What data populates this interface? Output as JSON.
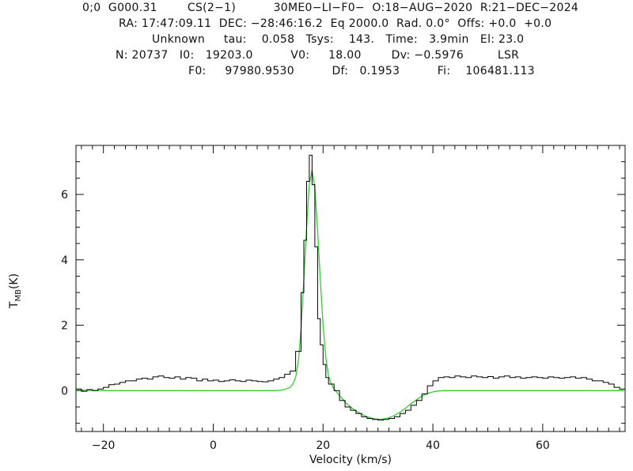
{
  "header": {
    "line1": "0;0  G000.31        CS(2−1)          30ME0−LI−F0−  O:18−AUG−2020  R:21−DEC−2024",
    "line2": "RA: 17:47:09.11  DEC: −28:46:16.2  Eq 2000.0  Rad. 0.0°  Offs: +0.0  +0.0",
    "line3": "Unknown     tau:    0.058   Tsys:    143.   Time:   3.9min   El: 23.0",
    "line4": "N: 20737   I0:   19203.0          V0:     18.00        Dv: −0.5976         LSR",
    "line5": "F0:     97980.9530          Df:   0.1953          Fi:    106481.113"
  },
  "chart_data": {
    "type": "line",
    "xlabel": "Velocity (km/s)",
    "ylabel_main": "T",
    "ylabel_sub": "MB",
    "ylabel_suffix": "(K)",
    "xlim": [
      -25,
      75
    ],
    "ylim": [
      -1.25,
      7.5
    ],
    "xticks": [
      -20,
      0,
      20,
      40,
      60
    ],
    "yticks": [
      0,
      2,
      4,
      6
    ],
    "grid": false,
    "series": [
      {
        "role": "observed spectrum (histogram)",
        "color": "#000000",
        "x": [
          -25,
          -24,
          -23,
          -22,
          -21,
          -20,
          -19,
          -18,
          -17,
          -16,
          -15,
          -14,
          -13,
          -12,
          -11,
          -10,
          -9,
          -8,
          -7,
          -6,
          -5,
          -4,
          -3,
          -2,
          -1,
          0,
          1,
          2,
          3,
          4,
          5,
          6,
          7,
          8,
          9,
          10,
          11,
          12,
          13,
          14,
          15,
          16,
          16.5,
          17,
          17.5,
          18,
          18.5,
          19,
          19.5,
          20,
          20.5,
          21,
          22,
          23,
          24,
          25,
          26,
          27,
          28,
          29,
          30,
          31,
          32,
          33,
          34,
          35,
          36,
          37,
          38,
          39,
          40,
          41,
          42,
          43,
          44,
          45,
          46,
          47,
          48,
          49,
          50,
          51,
          52,
          53,
          54,
          55,
          56,
          57,
          58,
          59,
          60,
          61,
          62,
          63,
          64,
          65,
          66,
          67,
          68,
          69,
          70,
          71,
          72,
          73,
          74
        ],
        "y": [
          0.05,
          -0.02,
          0.03,
          0.0,
          0.05,
          0.1,
          0.18,
          0.2,
          0.25,
          0.3,
          0.3,
          0.35,
          0.38,
          0.35,
          0.42,
          0.45,
          0.4,
          0.38,
          0.42,
          0.35,
          0.4,
          0.38,
          0.3,
          0.35,
          0.3,
          0.32,
          0.28,
          0.3,
          0.33,
          0.3,
          0.28,
          0.32,
          0.3,
          0.28,
          0.27,
          0.3,
          0.35,
          0.4,
          0.5,
          0.6,
          1.2,
          3.0,
          4.6,
          6.4,
          7.2,
          6.3,
          4.4,
          2.2,
          1.4,
          0.8,
          0.4,
          0.2,
          0.0,
          -0.3,
          -0.5,
          -0.6,
          -0.7,
          -0.8,
          -0.85,
          -0.88,
          -0.9,
          -0.88,
          -0.85,
          -0.8,
          -0.7,
          -0.6,
          -0.45,
          -0.3,
          -0.1,
          0.15,
          0.3,
          0.4,
          0.42,
          0.4,
          0.45,
          0.42,
          0.4,
          0.45,
          0.42,
          0.4,
          0.43,
          0.38,
          0.42,
          0.45,
          0.4,
          0.42,
          0.38,
          0.4,
          0.42,
          0.4,
          0.38,
          0.42,
          0.4,
          0.38,
          0.4,
          0.42,
          0.38,
          0.4,
          0.35,
          0.3,
          0.3,
          0.25,
          0.2,
          0.1,
          0.05
        ]
      },
      {
        "role": "gaussian fit",
        "color": "#33cc33",
        "x": [
          -25,
          -20,
          -15,
          -10,
          -5,
          0,
          5,
          8,
          10,
          11,
          12,
          13,
          14,
          14.5,
          15,
          15.5,
          16,
          16.5,
          17,
          17.5,
          18,
          18.5,
          19,
          19.5,
          20,
          20.5,
          21,
          21.5,
          22,
          22.5,
          23,
          23.5,
          24,
          25,
          26,
          27,
          28,
          29,
          30,
          31,
          32,
          33,
          34,
          35,
          36,
          37,
          38,
          39,
          40,
          41,
          42,
          43,
          45,
          50,
          55,
          60,
          65,
          70,
          75
        ],
        "y": [
          0.02,
          0.0,
          0.0,
          0.0,
          0.0,
          0.0,
          0.0,
          0.0,
          0.0,
          0.0,
          0.01,
          0.03,
          0.1,
          0.2,
          0.4,
          0.9,
          1.9,
          3.4,
          5.0,
          6.3,
          6.75,
          6.2,
          4.9,
          3.4,
          2.0,
          1.0,
          0.45,
          0.2,
          0.05,
          -0.05,
          -0.15,
          -0.25,
          -0.35,
          -0.5,
          -0.62,
          -0.72,
          -0.8,
          -0.85,
          -0.88,
          -0.87,
          -0.83,
          -0.76,
          -0.66,
          -0.54,
          -0.4,
          -0.28,
          -0.17,
          -0.09,
          -0.04,
          -0.01,
          0.0,
          0.0,
          0.0,
          0.0,
          0.0,
          0.0,
          0.0,
          0.0,
          0.0
        ]
      }
    ]
  }
}
